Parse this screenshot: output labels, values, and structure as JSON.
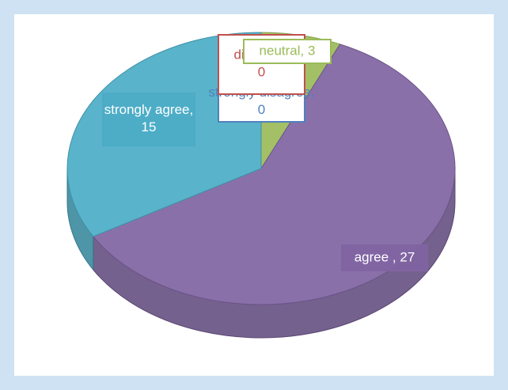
{
  "chart_data": {
    "type": "pie3d",
    "categories": [
      "strongly disagree",
      "disagree",
      "neutral",
      "agree ",
      "strongly agree"
    ],
    "values": [
      0,
      0,
      3,
      27,
      15
    ],
    "value_labels": [
      "strongly disagree, 0",
      "disagree, 0",
      "neutral, 3",
      "agree , 27",
      "strongly agree, 15"
    ],
    "colors": [
      "#4f81bd",
      "#c0504d",
      "#9bbb59",
      "#8064a2",
      "#4bacc6"
    ]
  }
}
